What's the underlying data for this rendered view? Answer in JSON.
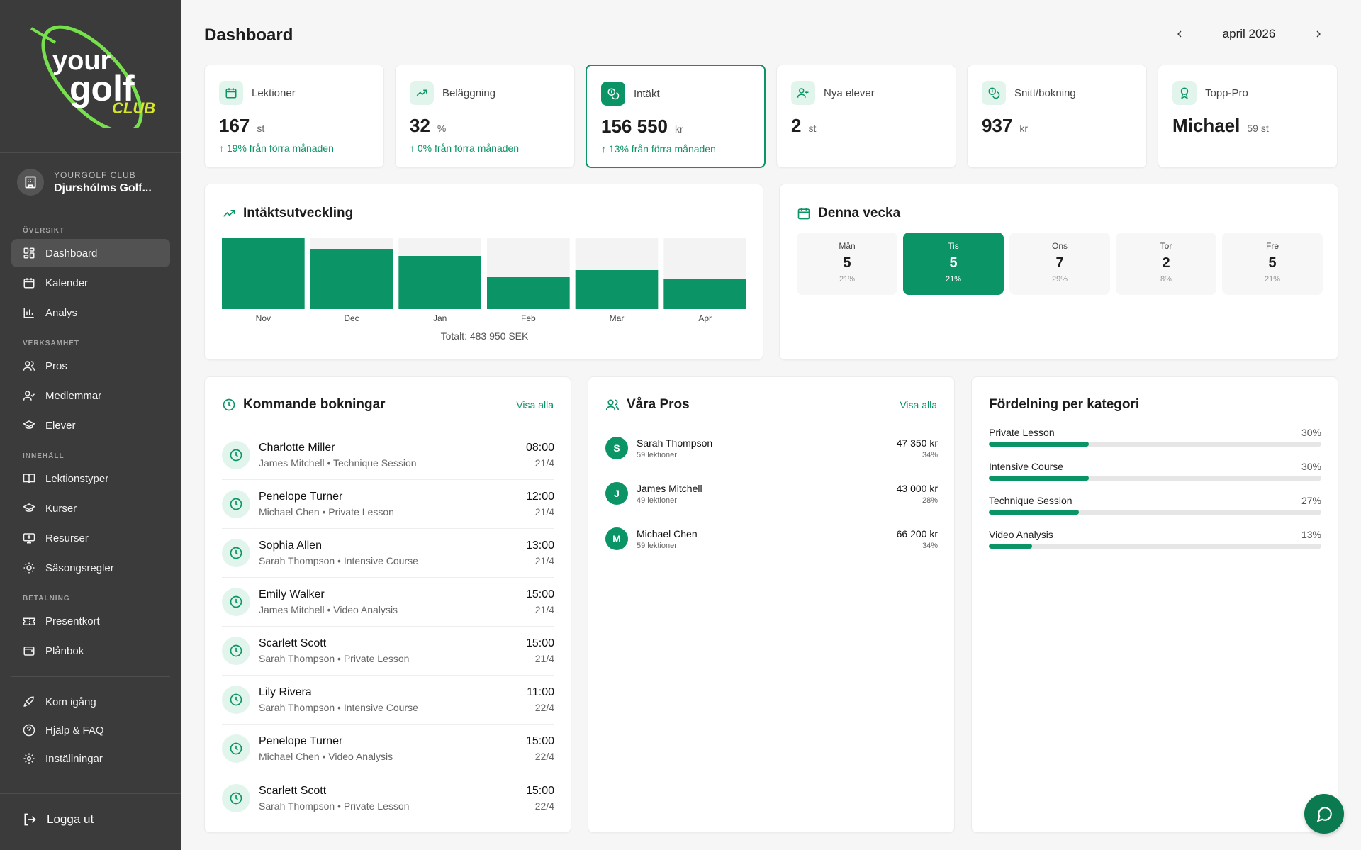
{
  "brand": {
    "logo_text_1": "your",
    "logo_text_2": "golf",
    "logo_text_3": "CLUB",
    "accent": "#0b9466",
    "logo_green": "#76e14c"
  },
  "club": {
    "label": "YOURGOLF CLUB",
    "name": "Djurshólms Golf..."
  },
  "sidebar": {
    "sections": {
      "overview": "ÖVERSIKT",
      "business": "VERKSAMHET",
      "content": "INNEHÅLL",
      "payment": "BETALNING"
    },
    "items": {
      "dashboard": "Dashboard",
      "calendar": "Kalender",
      "analysis": "Analys",
      "pros": "Pros",
      "members": "Medlemmar",
      "students": "Elever",
      "lesson_types": "Lektionstyper",
      "courses": "Kurser",
      "resources": "Resurser",
      "season_rules": "Säsongsregler",
      "gift_cards": "Presentkort",
      "wallet": "Plånbok",
      "get_started": "Kom igång",
      "help": "Hjälp & FAQ",
      "settings": "Inställningar"
    },
    "logout": "Logga ut"
  },
  "header": {
    "title": "Dashboard",
    "month": "april 2026"
  },
  "stats": [
    {
      "label": "Lektioner",
      "value": "167",
      "unit": "st",
      "change": "19% från förra månaden",
      "icon": "calendar-icon"
    },
    {
      "label": "Beläggning",
      "value": "32",
      "unit": "%",
      "change": "0% från förra månaden",
      "icon": "trend-up-icon"
    },
    {
      "label": "Intäkt",
      "value": "156 550",
      "unit": "kr",
      "change": "13% från förra månaden",
      "icon": "coins-icon"
    },
    {
      "label": "Nya elever",
      "value": "2",
      "unit": "st",
      "change": "",
      "icon": "user-plus-icon"
    },
    {
      "label": "Snitt/bokning",
      "value": "937",
      "unit": "kr",
      "change": "",
      "icon": "coins-icon"
    },
    {
      "label": "Topp-Pro",
      "value": "Michael",
      "unit": "59 st",
      "change": "",
      "icon": "award-icon"
    }
  ],
  "revenue": {
    "title": "Intäktsutveckling",
    "total": "Totalt: 483 950 SEK"
  },
  "chart_data": {
    "type": "bar",
    "categories": [
      "Nov",
      "Dec",
      "Jan",
      "Feb",
      "Mar",
      "Apr"
    ],
    "values": [
      1.0,
      0.85,
      0.75,
      0.45,
      0.55,
      0.43
    ],
    "title": "Intäktsutveckling",
    "xlabel": "",
    "ylabel": "",
    "ylim": [
      0,
      1
    ],
    "grid": false
  },
  "week": {
    "title": "Denna vecka",
    "days": [
      {
        "name": "Mån",
        "count": "5",
        "pct": "21%"
      },
      {
        "name": "Tis",
        "count": "5",
        "pct": "21%"
      },
      {
        "name": "Ons",
        "count": "7",
        "pct": "29%"
      },
      {
        "name": "Tor",
        "count": "2",
        "pct": "8%"
      },
      {
        "name": "Fre",
        "count": "5",
        "pct": "21%"
      }
    ]
  },
  "bookings": {
    "title": "Kommande bokningar",
    "link": "Visa alla",
    "items": [
      {
        "name": "Charlotte Miller",
        "sub": "James Mitchell • Technique Session",
        "time": "08:00",
        "date": "21/4"
      },
      {
        "name": "Penelope Turner",
        "sub": "Michael Chen • Private Lesson",
        "time": "12:00",
        "date": "21/4"
      },
      {
        "name": "Sophia Allen",
        "sub": "Sarah Thompson • Intensive Course",
        "time": "13:00",
        "date": "21/4"
      },
      {
        "name": "Emily Walker",
        "sub": "James Mitchell • Video Analysis",
        "time": "15:00",
        "date": "21/4"
      },
      {
        "name": "Scarlett Scott",
        "sub": "Sarah Thompson • Private Lesson",
        "time": "15:00",
        "date": "21/4"
      },
      {
        "name": "Lily Rivera",
        "sub": "Sarah Thompson • Intensive Course",
        "time": "11:00",
        "date": "22/4"
      },
      {
        "name": "Penelope Turner",
        "sub": "Michael Chen • Video Analysis",
        "time": "15:00",
        "date": "22/4"
      },
      {
        "name": "Scarlett Scott",
        "sub": "Sarah Thompson • Private Lesson",
        "time": "15:00",
        "date": "22/4"
      }
    ]
  },
  "pros": {
    "title": "Våra Pros",
    "link": "Visa alla",
    "items": [
      {
        "initial": "S",
        "name": "Sarah Thompson",
        "lessons": "59 lektioner",
        "amount": "47 350 kr",
        "pct": "34%"
      },
      {
        "initial": "J",
        "name": "James Mitchell",
        "lessons": "49 lektioner",
        "amount": "43 000 kr",
        "pct": "28%"
      },
      {
        "initial": "M",
        "name": "Michael Chen",
        "lessons": "59 lektioner",
        "amount": "66 200 kr",
        "pct": "34%"
      }
    ]
  },
  "categories": {
    "title": "Fördelning per kategori",
    "items": [
      {
        "name": "Private Lesson",
        "pct": "30%",
        "value": 30
      },
      {
        "name": "Intensive Course",
        "pct": "30%",
        "value": 30
      },
      {
        "name": "Technique Session",
        "pct": "27%",
        "value": 27
      },
      {
        "name": "Video Analysis",
        "pct": "13%",
        "value": 13
      }
    ]
  }
}
